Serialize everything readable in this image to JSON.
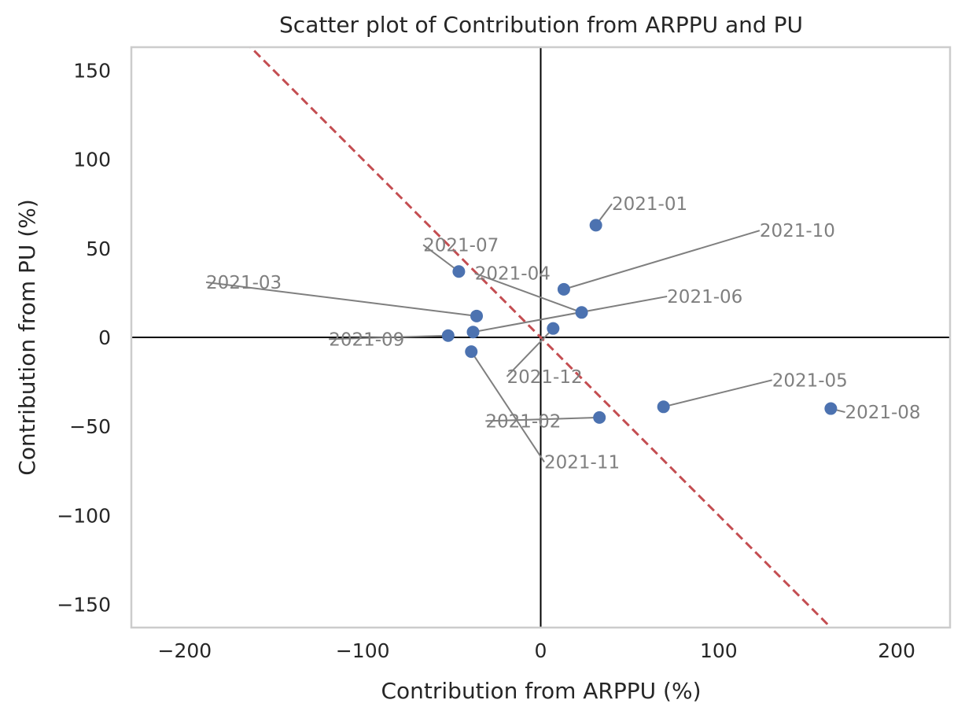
{
  "chart_data": {
    "type": "scatter",
    "title": "Scatter plot of Contribution from ARPPU and PU",
    "xlabel": "Contribution from ARPPU (%)",
    "ylabel": "Contribution from PU (%)",
    "xlim": [
      -230,
      230
    ],
    "ylim": [
      -163,
      163
    ],
    "xticks": [
      {
        "value": -200,
        "label": "−200"
      },
      {
        "value": -100,
        "label": "−100"
      },
      {
        "value": 0,
        "label": "0"
      },
      {
        "value": 100,
        "label": "100"
      },
      {
        "value": 200,
        "label": "200"
      }
    ],
    "yticks": [
      {
        "value": 150,
        "label": "150"
      },
      {
        "value": 100,
        "label": "100"
      },
      {
        "value": 50,
        "label": "50"
      },
      {
        "value": 0,
        "label": "0"
      },
      {
        "value": -50,
        "label": "−50"
      },
      {
        "value": -100,
        "label": "−100"
      },
      {
        "value": -150,
        "label": "−150"
      }
    ],
    "grid": false,
    "reference_line": {
      "slope": -1,
      "intercept": 0,
      "style": "dashed",
      "color": "#c44e52"
    },
    "zero_lines": true,
    "point_color": "#4c72b0",
    "annotation_color": "#7f7f7f",
    "points": [
      {
        "label": "2021-01",
        "x": 31,
        "y": 63,
        "label_pos": [
          40,
          75
        ]
      },
      {
        "label": "2021-02",
        "x": 33,
        "y": -45,
        "label_pos": [
          -31,
          -47
        ]
      },
      {
        "label": "2021-03",
        "x": -36,
        "y": 12,
        "label_pos": [
          -188,
          31
        ]
      },
      {
        "label": "2021-04",
        "x": 23,
        "y": 14,
        "label_pos": [
          -37,
          36
        ]
      },
      {
        "label": "2021-05",
        "x": 69,
        "y": -39,
        "label_pos": [
          130,
          -24
        ]
      },
      {
        "label": "2021-06",
        "x": -38,
        "y": 3,
        "label_pos": [
          71,
          23
        ]
      },
      {
        "label": "2021-07",
        "x": -46,
        "y": 37,
        "label_pos": [
          -66,
          52
        ]
      },
      {
        "label": "2021-08",
        "x": 163,
        "y": -40,
        "label_pos": [
          171,
          -42
        ]
      },
      {
        "label": "2021-09",
        "x": -52,
        "y": 1,
        "label_pos": [
          -119,
          -1
        ]
      },
      {
        "label": "2021-10",
        "x": 13,
        "y": 27,
        "label_pos": [
          123,
          60
        ]
      },
      {
        "label": "2021-11",
        "x": -39,
        "y": -8,
        "label_pos": [
          2,
          -70
        ]
      },
      {
        "label": "2021-12",
        "x": 7,
        "y": 5,
        "label_pos": [
          -19,
          -22
        ]
      }
    ]
  }
}
